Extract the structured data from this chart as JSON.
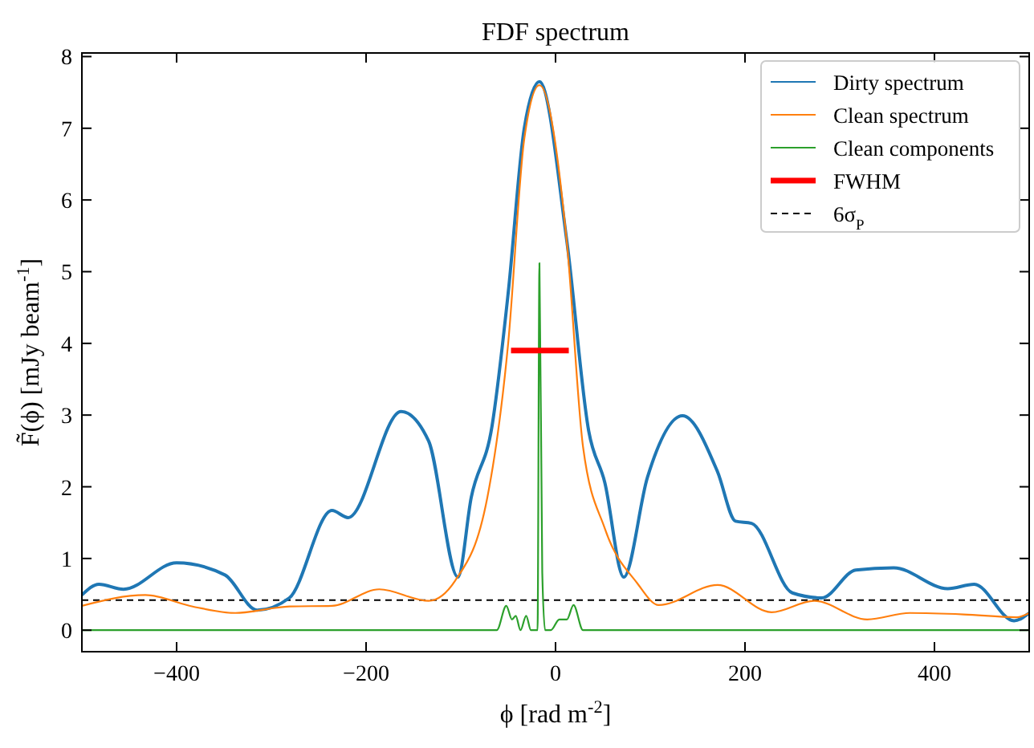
{
  "chart_data": {
    "type": "line",
    "title": "FDF spectrum",
    "xlabel": "ϕ [rad m$^{-2}$]",
    "ylabel": "F̃(ϕ) [mJy beam$^{-1}$]",
    "xlim": [
      -500,
      500
    ],
    "xticks": [
      {
        "value": -400,
        "label": "−400"
      },
      {
        "value": -200,
        "label": "−200"
      },
      0,
      200,
      400
    ],
    "ylim": [
      -0.3,
      8.05
    ],
    "yticks": [
      0,
      1,
      2,
      3,
      4,
      5,
      6,
      7,
      8
    ],
    "legend": "top right",
    "grid": false,
    "series": [
      {
        "name": "Dirty spectrum",
        "color": "#1f77b4",
        "x": [
          -500,
          -482,
          -456,
          -400,
          -349,
          -315,
          -281,
          -236,
          -219,
          -163,
          -134,
          -103,
          -89,
          -67,
          -50,
          -33,
          -17,
          12,
          35,
          52,
          72,
          97,
          134,
          171,
          190,
          207,
          250,
          281,
          317,
          357,
          414,
          442,
          484,
          500
        ],
        "values": [
          0.49,
          0.64,
          0.57,
          0.94,
          0.77,
          0.28,
          0.45,
          1.67,
          1.57,
          3.05,
          2.64,
          0.74,
          1.85,
          2.85,
          4.7,
          7.0,
          7.65,
          5.42,
          2.78,
          2.06,
          0.74,
          2.13,
          2.99,
          2.21,
          1.52,
          1.49,
          0.52,
          0.45,
          0.84,
          0.87,
          0.58,
          0.64,
          0.13,
          0.24
        ]
      },
      {
        "name": "Clean spectrum",
        "color": "#ff7f0e",
        "x": [
          -500,
          -433,
          -383,
          -338,
          -281,
          -236,
          -186,
          -134,
          -106,
          -72,
          -50,
          -33,
          -17,
          12,
          29,
          52,
          86,
          109,
          171,
          228,
          273,
          329,
          374,
          431,
          487,
          500
        ],
        "values": [
          0.34,
          0.49,
          0.33,
          0.24,
          0.33,
          0.34,
          0.57,
          0.41,
          0.69,
          1.85,
          4.0,
          6.85,
          7.6,
          5.4,
          2.56,
          1.42,
          0.66,
          0.35,
          0.63,
          0.25,
          0.41,
          0.15,
          0.24,
          0.22,
          0.18,
          0.24
        ]
      },
      {
        "name": "Clean components",
        "color": "#2ca02c",
        "x": [
          -500,
          -62,
          -52,
          -46,
          -42,
          -37,
          -31,
          -26,
          -19,
          -17,
          -14,
          -11,
          -5,
          4,
          12,
          19,
          29,
          500
        ],
        "values": [
          0,
          0,
          0.34,
          0.15,
          0.2,
          0,
          0.2,
          0,
          0,
          5.12,
          0.8,
          0,
          0,
          0.15,
          0.15,
          0.35,
          0,
          0
        ]
      },
      {
        "name": "FWHM",
        "color": "#ff0000",
        "x": [
          -47,
          14
        ],
        "values": [
          3.9,
          3.9
        ]
      }
    ],
    "ref_lines": [
      {
        "axis": "y",
        "value": 0.42,
        "label": "6σ$_{P}$",
        "color": "#000000",
        "line_style": "dashed"
      }
    ]
  }
}
